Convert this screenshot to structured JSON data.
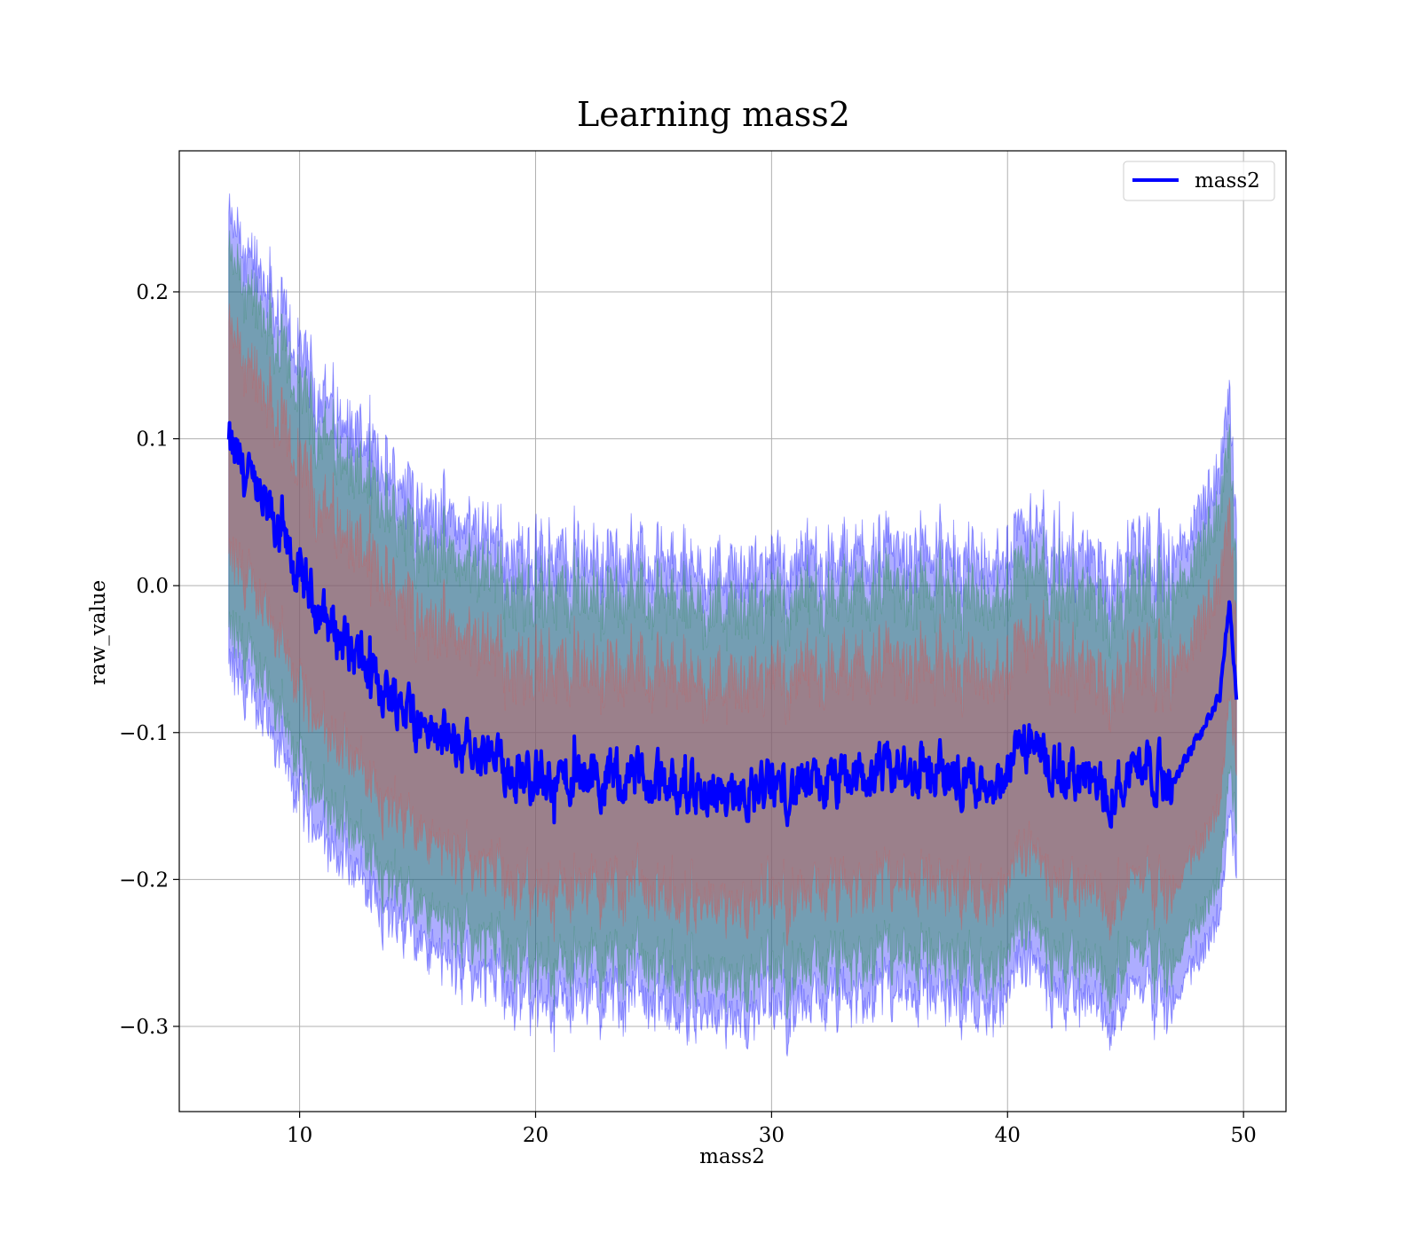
{
  "chart_data": {
    "type": "line",
    "title": "Learning mass2",
    "xlabel": "mass2",
    "ylabel": "raw_value",
    "xlim": [
      4.9,
      51.8
    ],
    "ylim": [
      -0.358,
      0.296
    ],
    "xticks": [
      10,
      20,
      30,
      40,
      50
    ],
    "xtick_labels": [
      "10",
      "20",
      "30",
      "40",
      "50"
    ],
    "yticks": [
      -0.3,
      -0.2,
      -0.1,
      0.0,
      0.1,
      0.2
    ],
    "ytick_labels": [
      "−0.3",
      "−0.2",
      "−0.1",
      "0.0",
      "0.1",
      "0.2"
    ],
    "grid": true,
    "legend": {
      "position": "top-right",
      "entries": [
        "mass2"
      ]
    },
    "colors": {
      "mean_line": "#0000ff",
      "band_outer": "#0000ff",
      "band_middle": "#2e8b57",
      "band_inner": "#cd5c5c"
    },
    "x_range": [
      7.0,
      49.7
    ],
    "series": [
      {
        "name": "mass2",
        "x": [
          7.0,
          8.0,
          9.0,
          10.0,
          11.0,
          12.0,
          13.0,
          14.0,
          15.0,
          16.0,
          17.0,
          18.0,
          19.0,
          20.0,
          21.0,
          22.0,
          23.0,
          24.0,
          25.0,
          26.0,
          27.0,
          28.0,
          29.0,
          30.0,
          31.0,
          32.0,
          33.0,
          34.0,
          35.0,
          36.0,
          37.0,
          38.0,
          39.0,
          40.0,
          40.5,
          41.0,
          42.0,
          43.0,
          44.0,
          45.0,
          45.8,
          46.5,
          47.0,
          47.5,
          48.0,
          48.5,
          49.0,
          49.4,
          49.7
        ],
        "mean": [
          0.095,
          0.065,
          0.04,
          0.005,
          -0.02,
          -0.04,
          -0.06,
          -0.075,
          -0.09,
          -0.105,
          -0.11,
          -0.12,
          -0.125,
          -0.13,
          -0.132,
          -0.13,
          -0.13,
          -0.132,
          -0.135,
          -0.135,
          -0.14,
          -0.14,
          -0.14,
          -0.138,
          -0.138,
          -0.137,
          -0.135,
          -0.13,
          -0.128,
          -0.128,
          -0.125,
          -0.13,
          -0.132,
          -0.13,
          -0.105,
          -0.11,
          -0.13,
          -0.128,
          -0.142,
          -0.13,
          -0.115,
          -0.13,
          -0.135,
          -0.12,
          -0.105,
          -0.09,
          -0.075,
          -0.01,
          -0.075
        ],
        "band_1": [
          0.075,
          0.075,
          0.075,
          0.075,
          0.075,
          0.075,
          0.075,
          0.075,
          0.075,
          0.075,
          0.075,
          0.075,
          0.075,
          0.075,
          0.075,
          0.075,
          0.075,
          0.075,
          0.075,
          0.075,
          0.075,
          0.075,
          0.075,
          0.075,
          0.075,
          0.075,
          0.075,
          0.075,
          0.075,
          0.075,
          0.075,
          0.075,
          0.075,
          0.075,
          0.075,
          0.075,
          0.075,
          0.075,
          0.075,
          0.075,
          0.075,
          0.075,
          0.075,
          0.075,
          0.075,
          0.075,
          0.075,
          0.06,
          0.05
        ],
        "band_2": [
          0.125,
          0.125,
          0.125,
          0.125,
          0.125,
          0.125,
          0.125,
          0.125,
          0.125,
          0.125,
          0.125,
          0.125,
          0.125,
          0.125,
          0.125,
          0.125,
          0.125,
          0.125,
          0.125,
          0.125,
          0.125,
          0.125,
          0.125,
          0.125,
          0.125,
          0.125,
          0.125,
          0.125,
          0.125,
          0.125,
          0.125,
          0.125,
          0.125,
          0.125,
          0.125,
          0.125,
          0.125,
          0.125,
          0.125,
          0.125,
          0.125,
          0.125,
          0.125,
          0.125,
          0.125,
          0.125,
          0.125,
          0.11,
          0.09
        ],
        "band_3": [
          0.15,
          0.15,
          0.15,
          0.15,
          0.15,
          0.15,
          0.15,
          0.15,
          0.15,
          0.15,
          0.15,
          0.15,
          0.15,
          0.15,
          0.15,
          0.15,
          0.15,
          0.15,
          0.15,
          0.15,
          0.15,
          0.15,
          0.15,
          0.15,
          0.15,
          0.15,
          0.15,
          0.15,
          0.15,
          0.15,
          0.15,
          0.15,
          0.15,
          0.15,
          0.15,
          0.15,
          0.15,
          0.15,
          0.15,
          0.15,
          0.15,
          0.15,
          0.15,
          0.15,
          0.15,
          0.15,
          0.15,
          0.14,
          0.12
        ]
      }
    ]
  }
}
